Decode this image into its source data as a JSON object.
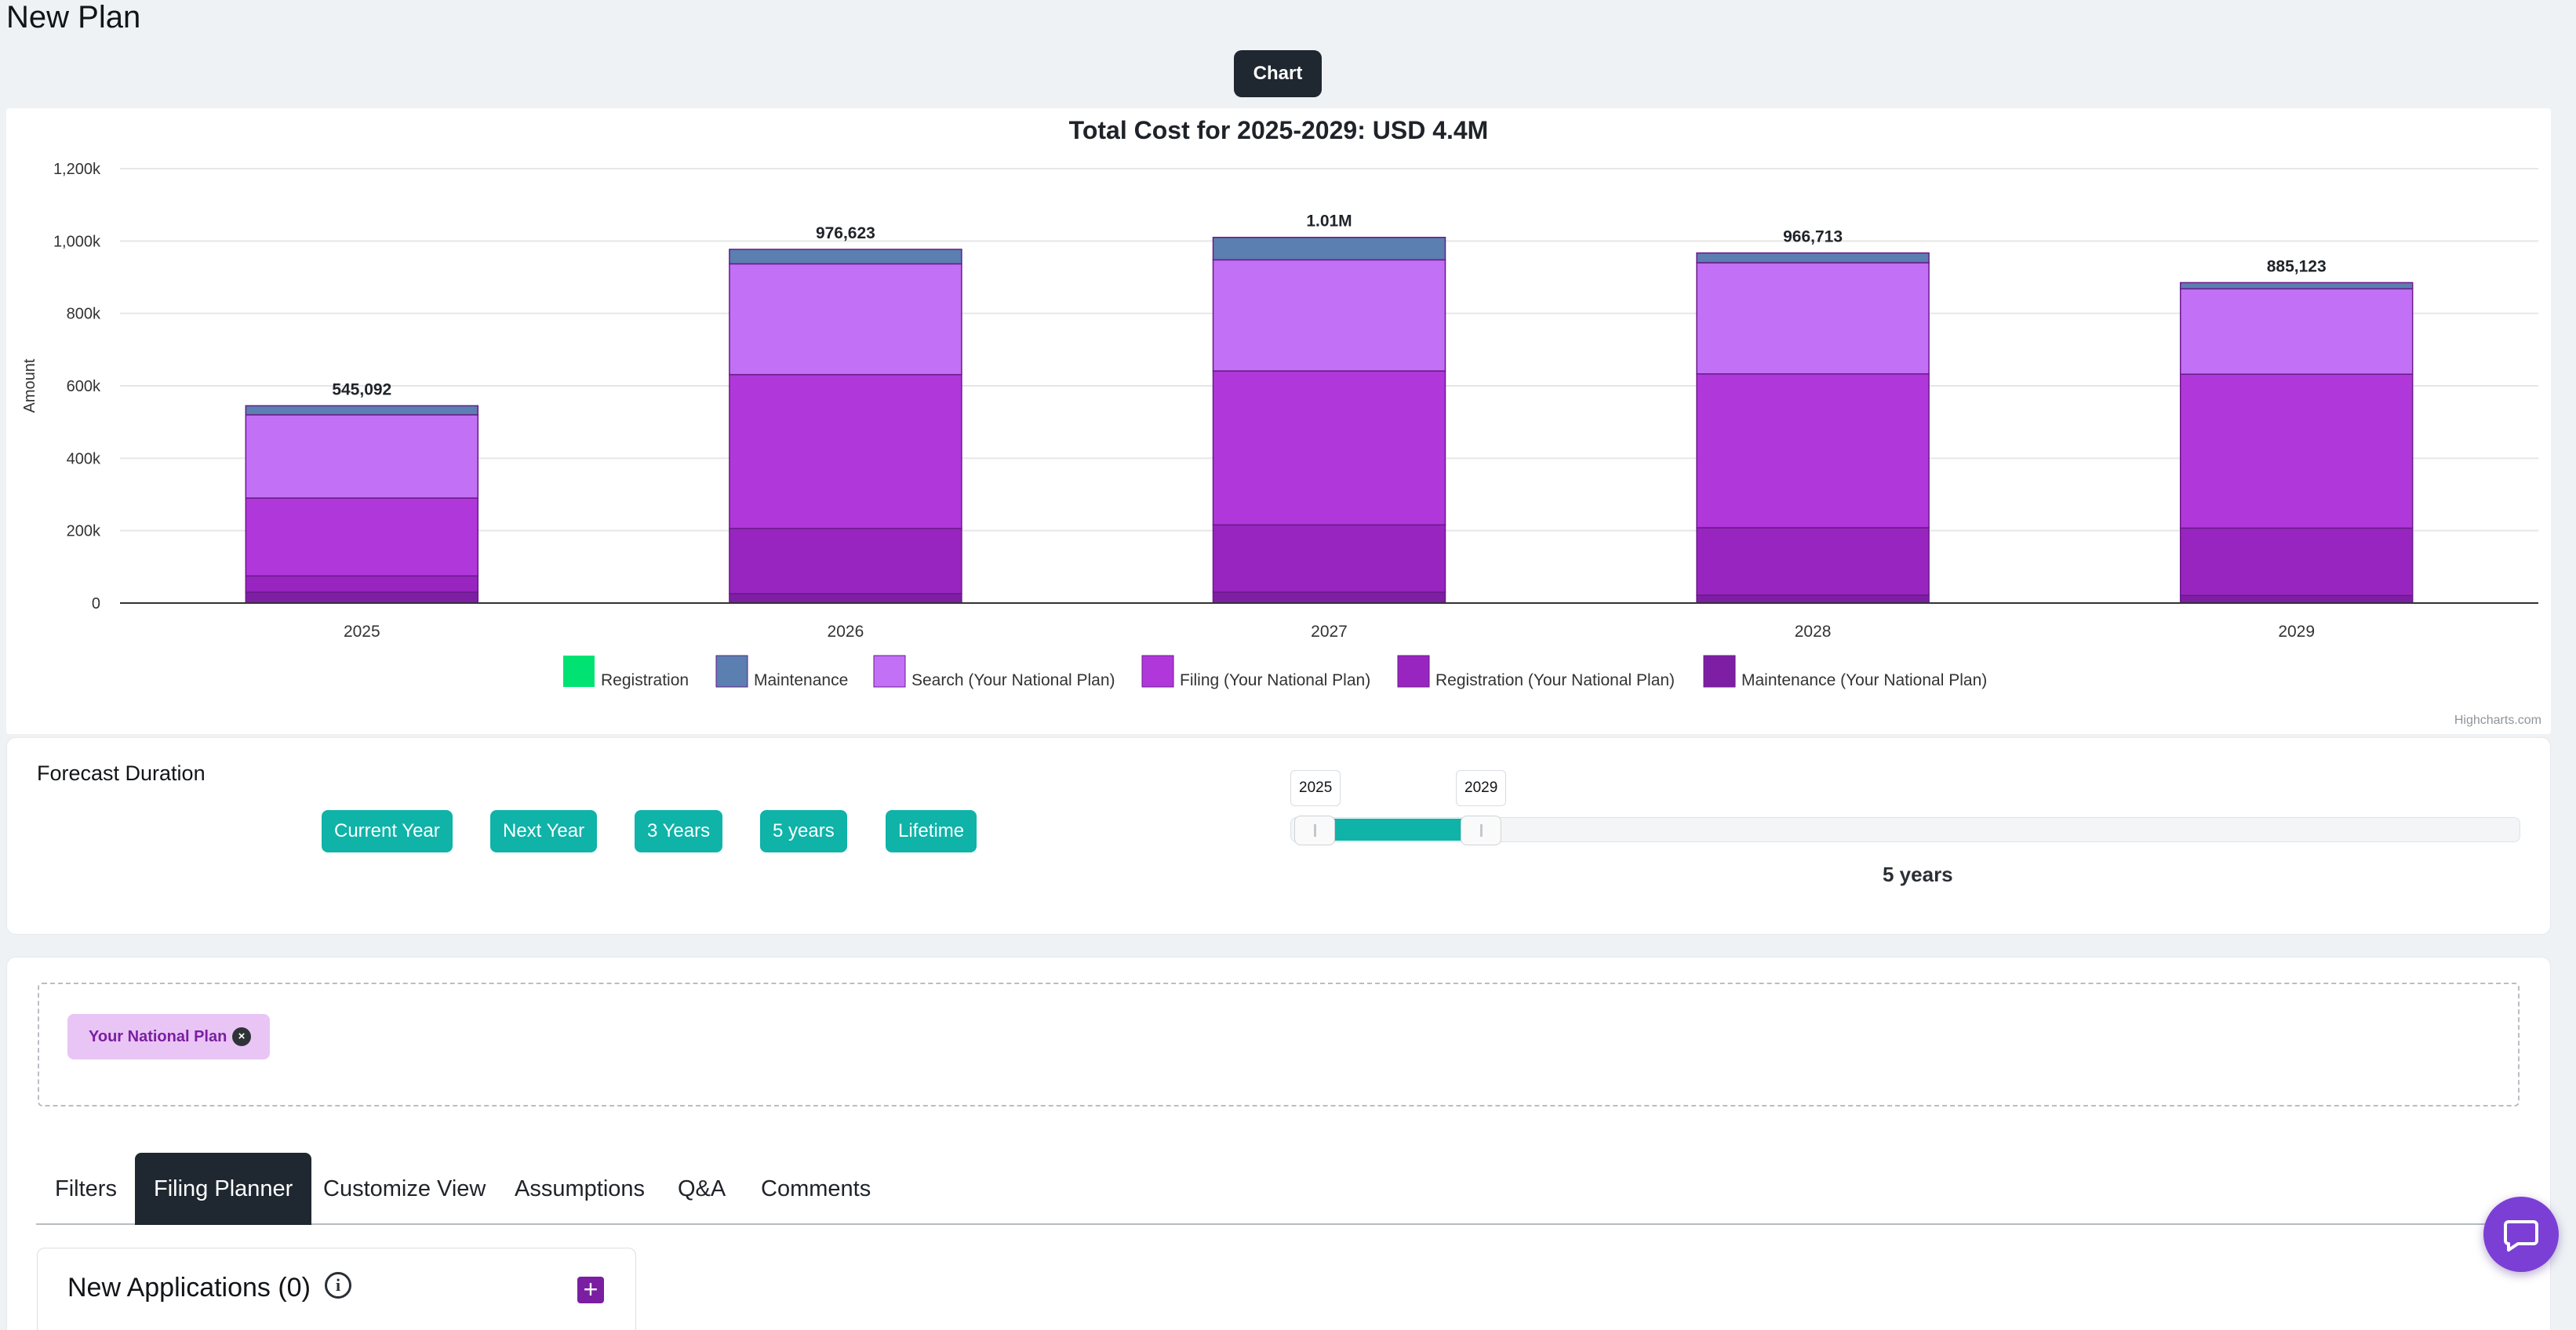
{
  "page": {
    "title": "New Plan"
  },
  "view_toggle": {
    "label": "Chart"
  },
  "chart_data": {
    "type": "bar",
    "stacked": true,
    "title": "Total Cost for 2025-2029: USD 4.4M",
    "xlabel": "",
    "ylabel": "Amount",
    "ylim": [
      0,
      1200000
    ],
    "yticks": [
      "0",
      "200k",
      "400k",
      "600k",
      "800k",
      "1,000k",
      "1,200k"
    ],
    "grid": true,
    "legend_position": "bottom",
    "categories": [
      "2025",
      "2026",
      "2027",
      "2028",
      "2029"
    ],
    "totals": [
      "545,092",
      "976,623",
      "1.01M",
      "966,713",
      "885,123"
    ],
    "series": [
      {
        "name": "Registration",
        "color": "#00e272",
        "values": [
          0,
          0,
          0,
          0,
          0
        ]
      },
      {
        "name": "Maintenance",
        "color": "#5a7fb0",
        "values": [
          25000,
          40000,
          62000,
          27000,
          17000
        ]
      },
      {
        "name": "Search (Your National Plan)",
        "color": "#c270f5",
        "values": [
          230000,
          306000,
          307000,
          307000,
          236000
        ]
      },
      {
        "name": "Filing (Your National Plan)",
        "color": "#b038da",
        "values": [
          215000,
          425000,
          425000,
          425000,
          425000
        ]
      },
      {
        "name": "Registration (Your National Plan)",
        "color": "#9925c0",
        "values": [
          45000,
          180000,
          186000,
          186000,
          186000
        ]
      },
      {
        "name": "Maintenance (Your National Plan)",
        "color": "#7e1ea5",
        "values": [
          30000,
          26000,
          30000,
          22000,
          21000
        ]
      }
    ],
    "credits": "Highcharts.com"
  },
  "forecast": {
    "title": "Forecast Duration",
    "buttons": [
      "Current Year",
      "Next Year",
      "3 Years",
      "5 years",
      "Lifetime"
    ],
    "range_start": "2025",
    "range_end": "2029",
    "range_label": "5 years"
  },
  "plans": {
    "chip_label": "Your National Plan",
    "chip_close": "×"
  },
  "tabs": [
    "Filters",
    "Filing Planner",
    "Customize View",
    "Assumptions",
    "Q&A",
    "Comments"
  ],
  "active_tab": "Filing Planner",
  "applications": {
    "title": "New Applications (0)",
    "info": "i",
    "add": "+"
  }
}
